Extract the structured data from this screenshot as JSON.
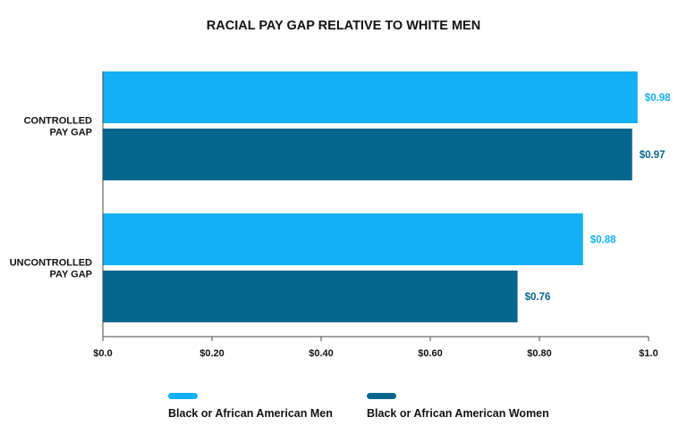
{
  "chart_data": {
    "type": "bar",
    "orientation": "horizontal",
    "title": "RACIAL PAY GAP RELATIVE TO WHITE MEN",
    "categories": [
      [
        "CONTROLLED",
        "PAY GAP"
      ],
      [
        "UNCONTROLLED",
        "PAY GAP"
      ]
    ],
    "series": [
      {
        "name": "Black or African American Men",
        "color": "#13b0f5",
        "values": [
          0.98,
          0.88
        ],
        "labels": [
          "$0.98",
          "$0.88"
        ]
      },
      {
        "name": "Black or African American Women",
        "color": "#05668d",
        "values": [
          0.97,
          0.76
        ],
        "labels": [
          "$0.97",
          "$0.76"
        ]
      }
    ],
    "xlim": [
      0,
      1.0
    ],
    "xticks": [
      0,
      0.2,
      0.4,
      0.6,
      0.8,
      1.0
    ],
    "xtick_labels": [
      "$0.0",
      "$0.20",
      "$0.40",
      "$0.60",
      "$0.80",
      "$1.0"
    ],
    "grid": false,
    "legend_position": "bottom"
  }
}
